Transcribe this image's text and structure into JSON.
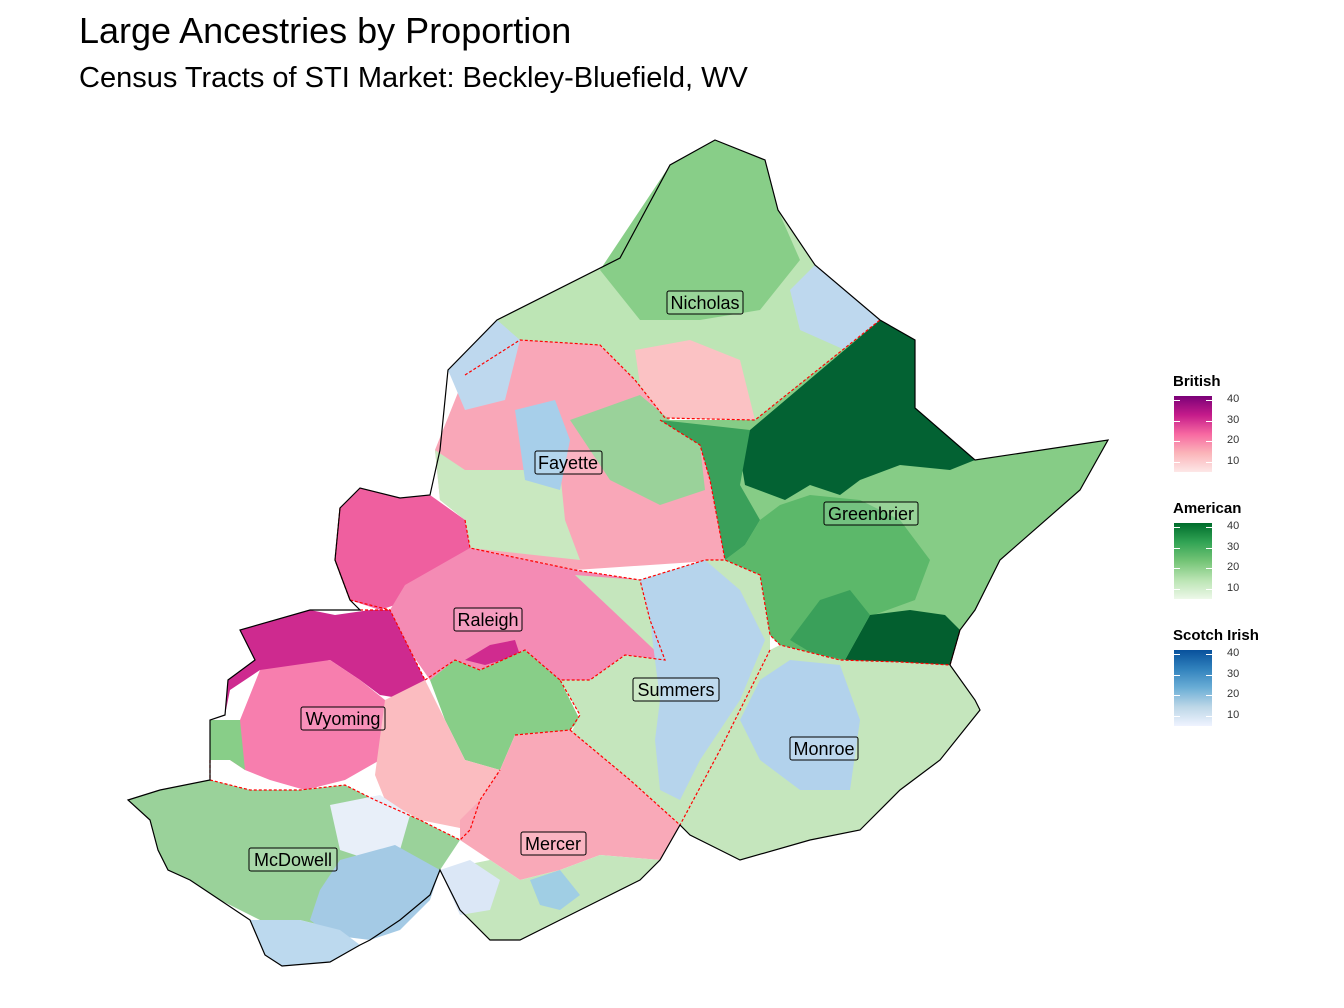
{
  "title": "Large Ancestries by Proportion",
  "subtitle": "Census Tracts of STI Market: Beckley-Bluefield, WV",
  "colors": {
    "british_scale": [
      "#fde7e7",
      "#fbb4b9",
      "#f768a1",
      "#c51b8a",
      "#7a0177"
    ],
    "american_scale": [
      "#edf8e9",
      "#bae4b3",
      "#74c476",
      "#31a354",
      "#006d2c"
    ],
    "scotch_irish_scale": [
      "#eff3ff",
      "#bdd7e7",
      "#6baed6",
      "#3182bd",
      "#08519c"
    ],
    "county_border": "#ff0000",
    "outline": "#000000"
  },
  "counties": [
    {
      "name": "Nicholas"
    },
    {
      "name": "Fayette"
    },
    {
      "name": "Greenbrier"
    },
    {
      "name": "Raleigh"
    },
    {
      "name": "Summers"
    },
    {
      "name": "Wyoming"
    },
    {
      "name": "Monroe"
    },
    {
      "name": "Mercer"
    },
    {
      "name": "McDowell"
    }
  ],
  "legends": [
    {
      "title": "British",
      "scale": "british_scale",
      "ticks": [
        10,
        20,
        30,
        40
      ],
      "min": 5,
      "max": 42
    },
    {
      "title": "American",
      "scale": "american_scale",
      "ticks": [
        10,
        20,
        30,
        40
      ],
      "min": 5,
      "max": 42
    },
    {
      "title": "Scotch Irish",
      "scale": "scotch_irish_scale",
      "ticks": [
        10,
        20,
        30,
        40
      ],
      "min": 5,
      "max": 42
    }
  ]
}
